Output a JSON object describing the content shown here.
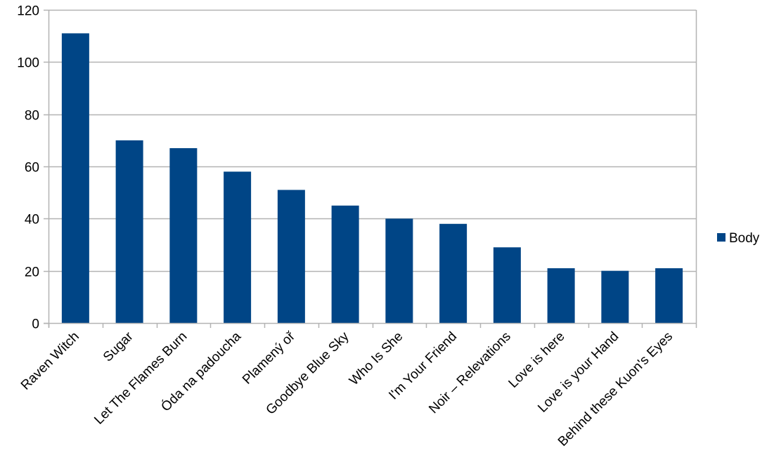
{
  "chart_data": {
    "type": "bar",
    "categories": [
      "Raven Witch",
      "Sugar",
      "Let The Flames Burn",
      "Óda na padoucha",
      "Plamený oř",
      "Goodbye Blue Sky",
      "Who Is She",
      "I'm Your Friend",
      "Noir – Relevations",
      "Love is here",
      "Love is your Hand",
      "Behind these Kuon's Eyes"
    ],
    "series": [
      {
        "name": "Body",
        "color": "#004586",
        "values": [
          111,
          70,
          67,
          58,
          51,
          45,
          40,
          38,
          29,
          21,
          20,
          21
        ]
      }
    ],
    "title": "",
    "xlabel": "",
    "ylabel": "",
    "ylim": [
      0,
      120
    ],
    "yticks": [
      0,
      20,
      40,
      60,
      80,
      100,
      120
    ],
    "grid": true,
    "legend_position": "right"
  },
  "colors": {
    "grid": "#b3b3b3",
    "bar": "#004586"
  }
}
